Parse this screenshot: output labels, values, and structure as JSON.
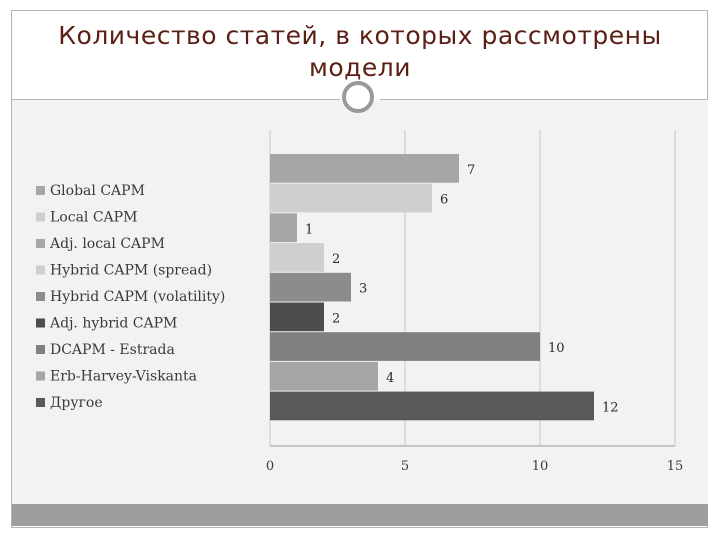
{
  "slide": {
    "title": "Количество статей, в которых рассмотрены модели"
  },
  "colors": {
    "title": "#5b1f14",
    "panel": "#f2f2f2",
    "footer": "#9e9e9e",
    "ring": "#9a9a9a"
  },
  "chart_data": {
    "type": "bar",
    "orientation": "horizontal",
    "title": "",
    "xlabel": "",
    "ylabel": "",
    "xlim": [
      0,
      15
    ],
    "xticks": [
      0,
      5,
      10,
      15
    ],
    "grid": true,
    "legend_position": "left",
    "categories": [
      "Global CAPM",
      "Local CAPM",
      "Adj. local CAPM",
      "Hybrid CAPM (spread)",
      "Hybrid CAPM (volatility)",
      "Adj. hybrid CAPM",
      "DCAPM - Estrada",
      "Erb-Harvey-Viskanta",
      "Другое"
    ],
    "values": [
      7,
      6,
      1,
      2,
      3,
      2,
      10,
      4,
      12
    ],
    "value_labels": [
      "7",
      "6",
      "1",
      "2",
      "3",
      "2",
      "10",
      "4",
      "12"
    ],
    "tick_labels": [
      "0",
      "5",
      "10",
      "15"
    ],
    "bar_colors": [
      "#a6a6a6",
      "#cfcfcf",
      "#a6a6a6",
      "#cfcfcf",
      "#8c8c8c",
      "#4d4d4d",
      "#808080",
      "#a6a6a6",
      "#595959"
    ],
    "legend_order": [
      "Global CAPM",
      "Local CAPM",
      "Adj. local CAPM",
      "Hybrid CAPM (spread)",
      "Hybrid CAPM (volatility)",
      "Adj. hybrid CAPM",
      "DCAPM - Estrada",
      "Erb-Harvey-Viskanta",
      "Другое"
    ]
  }
}
